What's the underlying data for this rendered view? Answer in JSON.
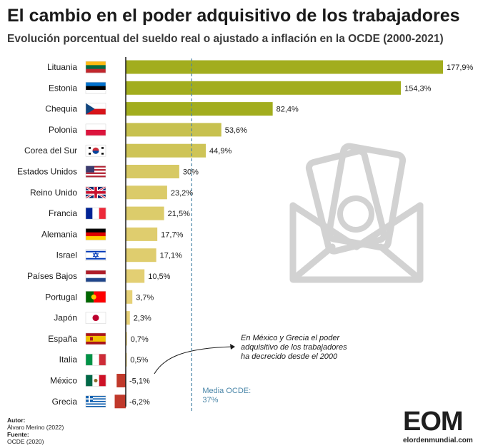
{
  "header": {
    "title": "El cambio en el poder adquisitivo de los trabajadores",
    "subtitle": "Evolución porcentual del sueldo real o ajustado a inflación en la OCDE (2000-2021)"
  },
  "chart_data": {
    "type": "bar",
    "orientation": "horizontal",
    "categories": [
      "Lituania",
      "Estonia",
      "Chequia",
      "Polonia",
      "Corea del Sur",
      "Estados Unidos",
      "Reino Unido",
      "Francia",
      "Alemania",
      "Israel",
      "Países Bajos",
      "Portugal",
      "Japón",
      "España",
      "Italia",
      "México",
      "Grecia"
    ],
    "values": [
      177.9,
      154.3,
      82.4,
      53.6,
      44.9,
      30,
      23.2,
      21.5,
      17.7,
      17.1,
      10.5,
      3.7,
      2.3,
      0.7,
      0.5,
      -5.1,
      -6.2
    ],
    "value_labels": [
      "177,9%",
      "154,3%",
      "82,4%",
      "53,6%",
      "44,9%",
      "30%",
      "23,2%",
      "21,5%",
      "17,7%",
      "17,1%",
      "10,5%",
      "3,7%",
      "2,3%",
      "0,7%",
      "0,5%",
      "-5,1%",
      "-6,2%"
    ],
    "xlim": [
      -6.2,
      177.9
    ],
    "reference_line": {
      "value": 37,
      "label_line1": "Media OCDE:",
      "label_line2": "37%"
    },
    "annotation": {
      "lines": [
        "En México y Grecia el poder",
        "adquisitivo de los trabajadores",
        "ha decrecido desde el 2000"
      ]
    },
    "colors": {
      "positive_high": "#a2ad1e",
      "positive_low": "#e8d27a",
      "negative": "#c0392b",
      "axis": "#1a1a1a",
      "reference": "#4a86a8"
    },
    "grid": false,
    "legend": "none"
  },
  "credits": {
    "author_label": "Autor:",
    "author": "Álvaro Merino (2022)",
    "source_label": "Fuente:",
    "source": "OCDE (2020)"
  },
  "logo": {
    "letters": "EOM",
    "site": "elordenmundial.com"
  },
  "icons": {
    "decoration": "envelope-with-money-icon"
  }
}
